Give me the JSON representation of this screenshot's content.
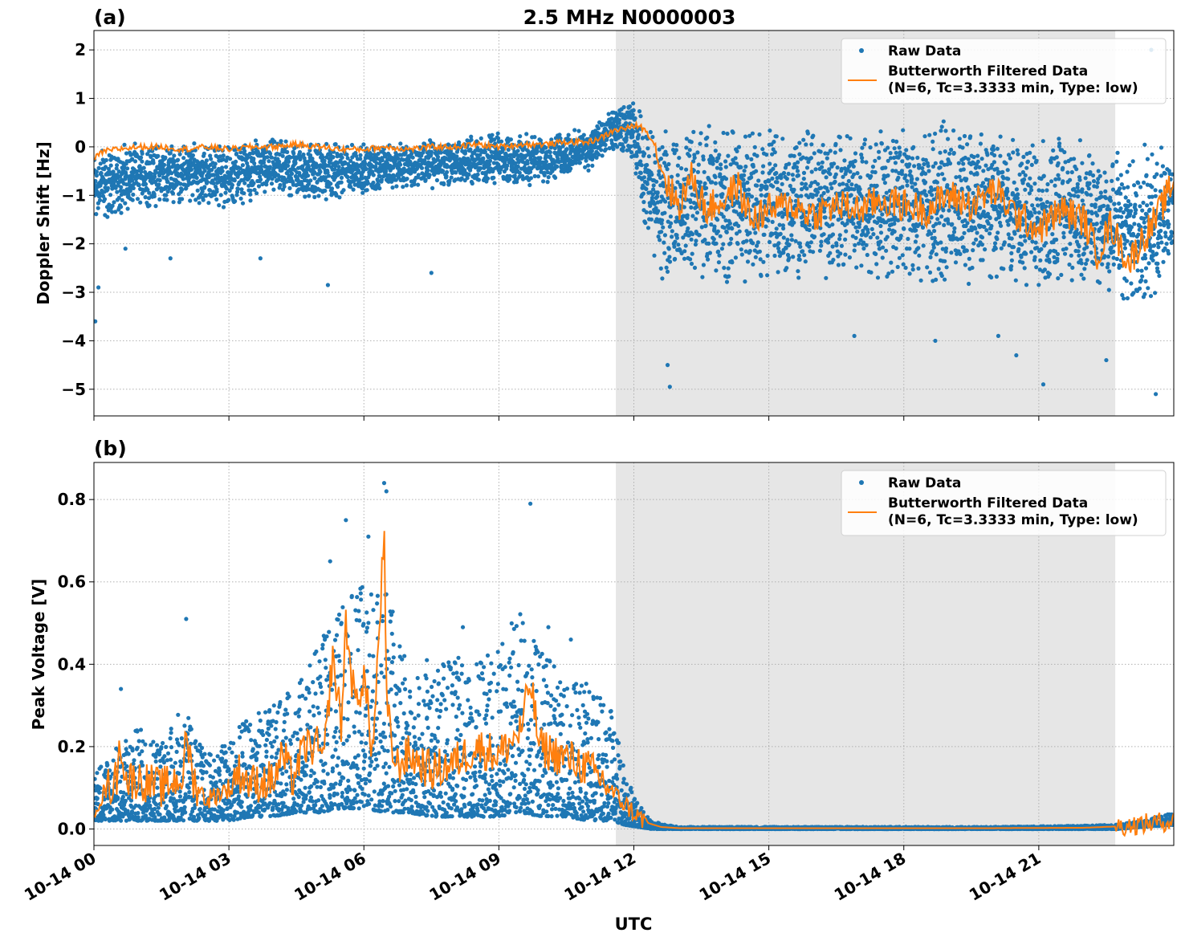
{
  "figure": {
    "title": "2.5 MHz N0000003",
    "xlabel": "UTC",
    "x_tick_labels": [
      "10-14 00",
      "10-14 03",
      "10-14 06",
      "10-14 09",
      "10-14 12",
      "10-14 15",
      "10-14 18",
      "10-14 21"
    ],
    "colors": {
      "raw": "#1f77b4",
      "filtered": "#ff7f0e",
      "shade": "#e6e6e6",
      "grid": "#b0b0b0"
    }
  },
  "chart_data": [
    {
      "type": "scatter",
      "panel_label": "(a)",
      "title": "2.5 MHz N0000003",
      "xlabel": "",
      "ylabel": "Doppler Shift [Hz]",
      "xlim_hours": [
        0,
        24
      ],
      "ylim": [
        -5.55,
        2.4
      ],
      "y_ticks": [
        2,
        1,
        0,
        -1,
        -2,
        -3,
        -4,
        -5
      ],
      "y_tick_labels": [
        "2",
        "1",
        "0",
        "−1",
        "−2",
        "−3",
        "−4",
        "−5"
      ],
      "grid": true,
      "shaded_span_hours": [
        11.6,
        22.7
      ],
      "legend": {
        "position": "upper right",
        "entries": [
          "Raw Data",
          "Butterworth Filtered Data",
          "(N=6, Tc=3.3333 min, Type: low)"
        ]
      },
      "series": [
        {
          "name": "Raw Data",
          "style": "points",
          "envelope_x_hours": [
            0,
            1,
            2,
            3,
            4,
            5,
            6,
            7,
            8,
            9,
            10,
            11,
            11.5,
            12,
            12.3,
            12.6,
            13,
            14,
            15,
            16,
            17,
            18,
            19,
            20,
            21,
            22,
            22.5,
            23,
            23.5,
            24
          ],
          "upper": [
            0.1,
            0.1,
            0.15,
            0.1,
            0.2,
            0.15,
            0.1,
            0.15,
            0.25,
            0.3,
            0.3,
            0.4,
            0.8,
            1.0,
            0.6,
            0.3,
            0.5,
            0.6,
            0.6,
            0.5,
            0.5,
            0.6,
            0.6,
            0.4,
            0.3,
            0.2,
            0.1,
            0.1,
            0.05,
            0.0
          ],
          "lower": [
            -1.7,
            -1.3,
            -1.2,
            -1.3,
            -1.0,
            -1.2,
            -1.0,
            -0.9,
            -0.9,
            -0.8,
            -0.8,
            -0.5,
            -0.2,
            -0.3,
            -2.2,
            -2.8,
            -2.8,
            -3.0,
            -3.0,
            -2.9,
            -2.8,
            -2.8,
            -3.0,
            -2.8,
            -3.0,
            -3.0,
            -3.2,
            -3.5,
            -3.3,
            -2.6
          ],
          "outliers": [
            [
              0.03,
              -3.6
            ],
            [
              0.1,
              -2.9
            ],
            [
              0.7,
              -2.1
            ],
            [
              1.7,
              -2.3
            ],
            [
              3.7,
              -2.3
            ],
            [
              5.2,
              -2.85
            ],
            [
              7.5,
              -2.6
            ],
            [
              12.8,
              -4.95
            ],
            [
              12.75,
              -4.5
            ],
            [
              16.9,
              -3.9
            ],
            [
              18.7,
              -4.0
            ],
            [
              20.1,
              -3.9
            ],
            [
              20.5,
              -4.3
            ],
            [
              21.1,
              -4.9
            ],
            [
              22.5,
              -4.4
            ],
            [
              23.6,
              -5.1
            ],
            [
              23.5,
              2.0
            ]
          ]
        },
        {
          "name": "Butterworth Filtered Data",
          "style": "line",
          "x_hours": [
            0,
            0.2,
            0.5,
            1,
            1.5,
            2,
            2.5,
            3,
            3.5,
            4,
            4.5,
            5,
            5.5,
            6,
            6.5,
            7,
            7.5,
            8,
            8.5,
            9,
            9.5,
            10,
            10.5,
            11,
            11.3,
            11.6,
            11.9,
            12.1,
            12.3,
            12.5,
            12.6,
            12.8,
            13,
            13.3,
            13.6,
            14,
            14.3,
            14.6,
            15,
            15.5,
            16,
            16.5,
            17,
            17.5,
            18,
            18.5,
            19,
            19.5,
            20,
            20.5,
            21,
            21.5,
            22,
            22.3,
            22.6,
            23,
            23.3,
            23.6,
            24
          ],
          "y": [
            -0.25,
            -0.1,
            -0.05,
            0.0,
            0.0,
            -0.05,
            0.0,
            -0.05,
            0.0,
            0.0,
            0.05,
            0.0,
            -0.05,
            -0.05,
            0.0,
            -0.05,
            0.0,
            0.0,
            0.05,
            0.0,
            0.05,
            0.05,
            0.1,
            0.1,
            0.2,
            0.35,
            0.4,
            0.45,
            0.3,
            0.0,
            -0.4,
            -0.9,
            -1.2,
            -0.6,
            -1.3,
            -1.1,
            -0.8,
            -1.5,
            -1.3,
            -1.2,
            -1.4,
            -1.2,
            -1.3,
            -1.1,
            -1.2,
            -1.3,
            -1.0,
            -1.2,
            -0.9,
            -1.4,
            -1.7,
            -1.3,
            -1.5,
            -2.2,
            -1.6,
            -2.4,
            -1.9,
            -1.5,
            -0.7
          ]
        }
      ]
    },
    {
      "type": "scatter",
      "panel_label": "(b)",
      "title": "",
      "xlabel": "UTC",
      "ylabel": "Peak Voltage [V]",
      "xlim_hours": [
        0,
        24
      ],
      "ylim": [
        -0.04,
        0.89
      ],
      "y_ticks": [
        0.8,
        0.6,
        0.4,
        0.2,
        0.0
      ],
      "y_tick_labels": [
        "0.8",
        "0.6",
        "0.4",
        "0.2",
        "0.0"
      ],
      "grid": true,
      "shaded_span_hours": [
        11.6,
        22.7
      ],
      "legend": {
        "position": "upper right",
        "entries": [
          "Raw Data",
          "Butterworth Filtered Data",
          "(N=6, Tc=3.3333 min, Type: low)"
        ]
      },
      "series": [
        {
          "name": "Raw Data",
          "style": "points",
          "envelope_x_hours": [
            0,
            0.5,
            1,
            1.5,
            2,
            2.5,
            3,
            3.5,
            4,
            4.5,
            5,
            5.5,
            6,
            6.5,
            7,
            7.5,
            8,
            8.5,
            9,
            9.5,
            10,
            10.5,
            11,
            11.5,
            11.8,
            12.1,
            12.4,
            12.7,
            13,
            14,
            16,
            18,
            20,
            22,
            22.7,
            23.3,
            24
          ],
          "upper": [
            0.15,
            0.2,
            0.25,
            0.22,
            0.3,
            0.18,
            0.22,
            0.28,
            0.3,
            0.35,
            0.45,
            0.55,
            0.6,
            0.6,
            0.35,
            0.4,
            0.42,
            0.4,
            0.45,
            0.55,
            0.42,
            0.38,
            0.35,
            0.3,
            0.15,
            0.06,
            0.02,
            0.01,
            0.005,
            0.005,
            0.005,
            0.005,
            0.005,
            0.008,
            0.01,
            0.02,
            0.04
          ],
          "lower": [
            0.02,
            0.02,
            0.02,
            0.02,
            0.02,
            0.02,
            0.02,
            0.03,
            0.03,
            0.04,
            0.04,
            0.05,
            0.05,
            0.04,
            0.04,
            0.03,
            0.03,
            0.03,
            0.03,
            0.04,
            0.03,
            0.03,
            0.02,
            0.02,
            0.01,
            0.005,
            0.0,
            0.0,
            0.0,
            0.0,
            0.0,
            0.0,
            0.0,
            0.0,
            0.0,
            0.005,
            0.01
          ],
          "outliers": [
            [
              0.6,
              0.34
            ],
            [
              2.05,
              0.51
            ],
            [
              5.25,
              0.65
            ],
            [
              5.6,
              0.75
            ],
            [
              6.1,
              0.71
            ],
            [
              6.45,
              0.84
            ],
            [
              6.5,
              0.82
            ],
            [
              6.9,
              0.42
            ],
            [
              7.4,
              0.41
            ],
            [
              8.2,
              0.49
            ],
            [
              9.7,
              0.79
            ],
            [
              10.1,
              0.49
            ],
            [
              10.6,
              0.46
            ]
          ]
        },
        {
          "name": "Butterworth Filtered Data",
          "style": "line",
          "x_hours": [
            0,
            0.3,
            0.5,
            0.6,
            0.7,
            1,
            1.5,
            2,
            2.05,
            2.2,
            2.5,
            3,
            3.2,
            3.5,
            4,
            4.2,
            4.4,
            4.7,
            5,
            5.1,
            5.3,
            5.5,
            5.6,
            5.8,
            6,
            6.2,
            6.45,
            6.5,
            6.7,
            7,
            7.5,
            8,
            8.5,
            9,
            9.5,
            9.7,
            9.9,
            10.3,
            10.8,
            11.3,
            11.6,
            11.9,
            12.1,
            12.3,
            12.6,
            13,
            14,
            16,
            18,
            20,
            22,
            22.7,
            23.3,
            24
          ],
          "y": [
            0.05,
            0.1,
            0.12,
            0.22,
            0.12,
            0.12,
            0.1,
            0.13,
            0.24,
            0.12,
            0.07,
            0.1,
            0.14,
            0.11,
            0.12,
            0.18,
            0.12,
            0.2,
            0.2,
            0.15,
            0.42,
            0.25,
            0.5,
            0.3,
            0.37,
            0.18,
            0.72,
            0.3,
            0.15,
            0.18,
            0.14,
            0.16,
            0.2,
            0.18,
            0.24,
            0.36,
            0.2,
            0.18,
            0.16,
            0.12,
            0.08,
            0.05,
            0.03,
            0.015,
            0.005,
            0.002,
            0.002,
            0.002,
            0.002,
            0.002,
            0.003,
            0.006,
            0.012,
            0.02
          ]
        }
      ]
    }
  ]
}
